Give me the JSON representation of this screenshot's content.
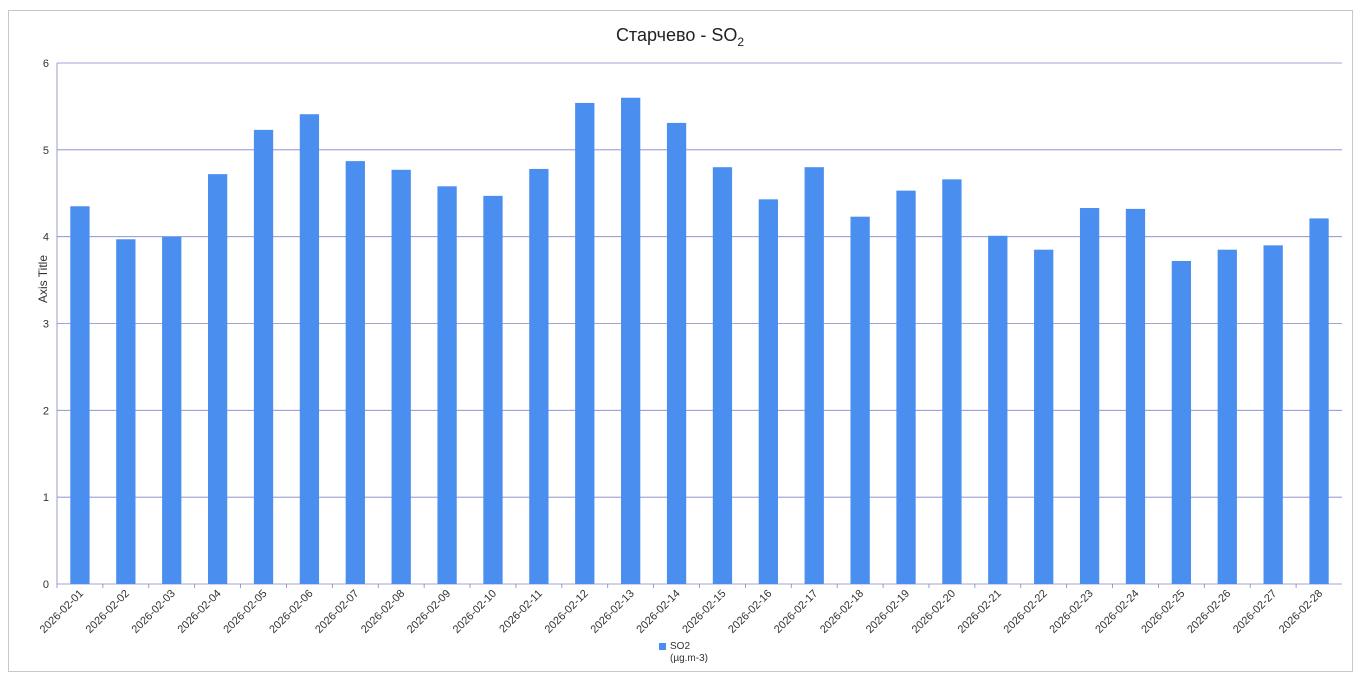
{
  "chart_data": {
    "type": "bar",
    "title_main": "Старчево - SO",
    "title_subscript": "2",
    "ylabel": "Axis Title",
    "xlabel": "",
    "ylim": [
      0,
      6
    ],
    "yticks": [
      "0",
      "1",
      "2",
      "3",
      "4",
      "5",
      "6"
    ],
    "grid": true,
    "legend_position": "bottom",
    "bar_color": "#4a8ef0",
    "categories": [
      "2026-02-01",
      "2026-02-02",
      "2026-02-03",
      "2026-02-04",
      "2026-02-05",
      "2026-02-06",
      "2026-02-07",
      "2026-02-08",
      "2026-02-09",
      "2026-02-10",
      "2026-02-11",
      "2026-02-12",
      "2026-02-13",
      "2026-02-14",
      "2026-02-15",
      "2026-02-16",
      "2026-02-17",
      "2026-02-18",
      "2026-02-19",
      "2026-02-20",
      "2026-02-21",
      "2026-02-22",
      "2026-02-23",
      "2026-02-24",
      "2026-02-25",
      "2026-02-26",
      "2026-02-27",
      "2026-02-28"
    ],
    "series": [
      {
        "name_line1": "SO2",
        "name_line2": "(µg.m-3)",
        "values": [
          4.35,
          3.97,
          4.0,
          4.72,
          5.23,
          5.41,
          4.87,
          4.77,
          4.58,
          4.47,
          4.78,
          5.54,
          5.6,
          5.31,
          4.8,
          4.43,
          4.8,
          4.23,
          4.53,
          4.66,
          4.01,
          3.85,
          4.33,
          4.32,
          3.72,
          3.85,
          3.9,
          4.21
        ]
      }
    ]
  }
}
